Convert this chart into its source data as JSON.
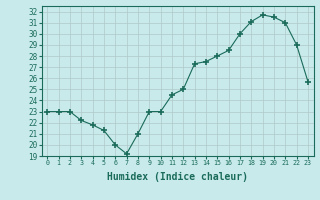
{
  "x": [
    0,
    1,
    2,
    3,
    4,
    5,
    6,
    7,
    8,
    9,
    10,
    11,
    12,
    13,
    14,
    15,
    16,
    17,
    18,
    19,
    20,
    21,
    22,
    23
  ],
  "y": [
    23.0,
    23.0,
    23.0,
    22.2,
    21.8,
    21.3,
    20.0,
    19.2,
    21.0,
    23.0,
    23.0,
    24.5,
    25.0,
    27.3,
    27.5,
    28.0,
    28.5,
    30.0,
    31.1,
    31.7,
    31.5,
    31.0,
    29.0,
    25.7
  ],
  "line_color": "#1a6b5a",
  "marker": "+",
  "marker_size": 4.0,
  "bg_color": "#c8eaea",
  "grid_color": "#b0c8c8",
  "tick_color": "#1a6b5a",
  "xlabel": "Humidex (Indice chaleur)",
  "xlabel_fontsize": 7,
  "ylim": [
    19,
    32.5
  ],
  "yticks": [
    19,
    20,
    21,
    22,
    23,
    24,
    25,
    26,
    27,
    28,
    29,
    30,
    31,
    32
  ],
  "xlim": [
    -0.5,
    23.5
  ],
  "xticks": [
    0,
    1,
    2,
    3,
    4,
    5,
    6,
    7,
    8,
    9,
    10,
    11,
    12,
    13,
    14,
    15,
    16,
    17,
    18,
    19,
    20,
    21,
    22,
    23
  ]
}
